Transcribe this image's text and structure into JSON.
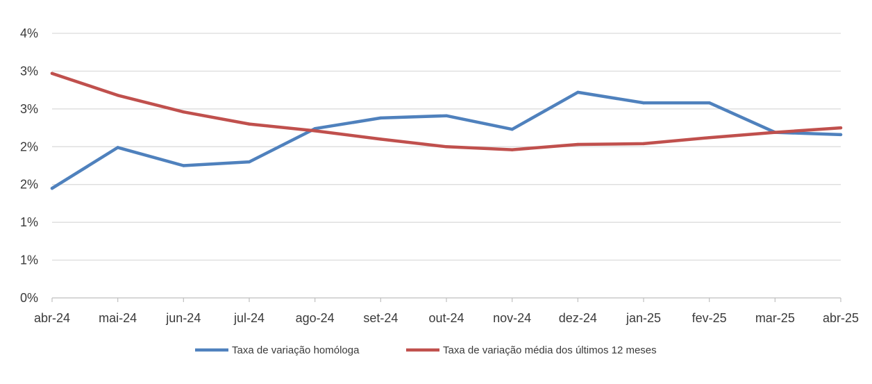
{
  "chart_data": {
    "type": "line",
    "title": "",
    "xlabel": "",
    "ylabel": "",
    "categories": [
      "abr-24",
      "mai-24",
      "jun-24",
      "jul-24",
      "ago-24",
      "set-24",
      "out-24",
      "nov-24",
      "dez-24",
      "jan-25",
      "fev-25",
      "mar-25",
      "abr-25"
    ],
    "ylim": [
      0,
      3.5
    ],
    "yticks": [
      0,
      0.5,
      1.0,
      1.5,
      2.0,
      2.5,
      3.0,
      3.5
    ],
    "ytick_labels": [
      "0%",
      "1%",
      "1%",
      "2%",
      "2%",
      "3%",
      "3%",
      "4%"
    ],
    "grid": true,
    "legend_position": "bottom",
    "series": [
      {
        "name": "Taxa de variação homóloga",
        "color": "#4f81bd",
        "values": [
          1.45,
          1.99,
          1.75,
          1.8,
          2.24,
          2.38,
          2.41,
          2.23,
          2.72,
          2.58,
          2.58,
          2.19,
          2.16
        ]
      },
      {
        "name": "Taxa de variação média dos últimos 12 meses",
        "color": "#c0504d",
        "values": [
          2.97,
          2.68,
          2.46,
          2.3,
          2.21,
          2.1,
          2.0,
          1.96,
          2.03,
          2.04,
          2.12,
          2.19,
          2.25
        ]
      }
    ]
  }
}
